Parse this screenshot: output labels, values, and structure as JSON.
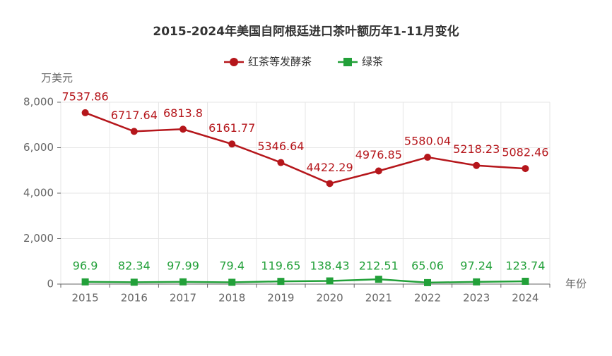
{
  "chart_data": {
    "type": "line",
    "title": "2015-2024年美国自阿根廷进口茶叶额历年1-11月变化",
    "y_label": "万美元",
    "x_label": "年份",
    "categories": [
      "2015",
      "2016",
      "2017",
      "2018",
      "2019",
      "2020",
      "2021",
      "2022",
      "2023",
      "2024"
    ],
    "series": [
      {
        "name": "红茶等发酵茶",
        "color": "#b5161b",
        "marker": "circle",
        "values": [
          7537.86,
          6717.64,
          6813.8,
          6161.77,
          5346.64,
          4422.29,
          4976.85,
          5580.04,
          5218.23,
          5082.46
        ]
      },
      {
        "name": "绿茶",
        "color": "#22a039",
        "marker": "square",
        "values": [
          96.9,
          82.34,
          97.99,
          79.4,
          119.65,
          138.43,
          212.51,
          65.06,
          97.24,
          123.74
        ]
      }
    ],
    "ylim": [
      0,
      8000
    ],
    "yticks": [
      0,
      {
        "value": 2000,
        "label": "2,000"
      },
      {
        "value": 4000,
        "label": "4,000"
      },
      {
        "value": 6000,
        "label": "6,000"
      },
      {
        "value": 8000,
        "label": "8,000"
      }
    ],
    "grid": true
  }
}
